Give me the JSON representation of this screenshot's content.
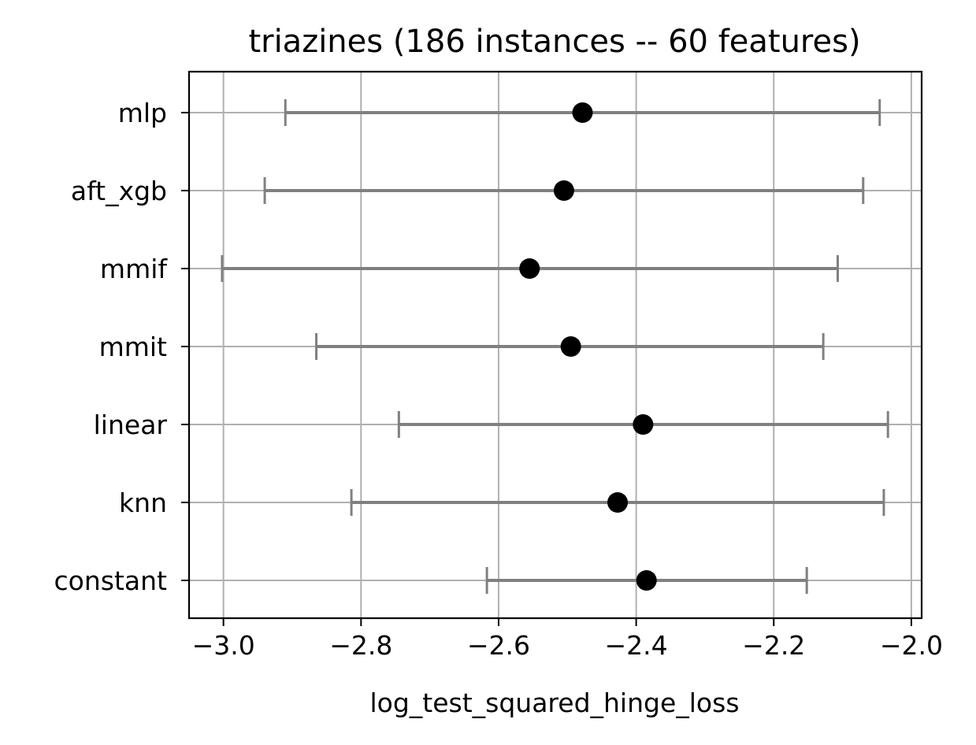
{
  "chart_data": {
    "type": "scatter",
    "title": "triazines (186 instances -- 60 features)",
    "xlabel": "log_test_squared_hinge_loss",
    "ylabel": "",
    "xlim": [
      -3.05,
      -1.985
    ],
    "xticks": [
      -3.0,
      -2.8,
      -2.6,
      -2.4,
      -2.2,
      -2.0
    ],
    "xtick_labels": [
      "−3.0",
      "−2.8",
      "−2.6",
      "−2.4",
      "−2.2",
      "−2.0"
    ],
    "categories": [
      "mlp",
      "aft_xgb",
      "mmif",
      "mmit",
      "linear",
      "knn",
      "constant"
    ],
    "points": [
      {
        "label": "mlp",
        "mean": -2.478,
        "lo": -2.91,
        "hi": -2.046
      },
      {
        "label": "aft_xgb",
        "mean": -2.505,
        "lo": -2.94,
        "hi": -2.07
      },
      {
        "label": "mmif",
        "mean": -2.555,
        "lo": -3.002,
        "hi": -2.107
      },
      {
        "label": "mmit",
        "mean": -2.495,
        "lo": -2.865,
        "hi": -2.128
      },
      {
        "label": "linear",
        "mean": -2.39,
        "lo": -2.745,
        "hi": -2.034
      },
      {
        "label": "knn",
        "mean": -2.427,
        "lo": -2.814,
        "hi": -2.04
      },
      {
        "label": "constant",
        "mean": -2.385,
        "lo": -2.617,
        "hi": -2.152
      }
    ],
    "grid": true,
    "colors": {
      "point": "#000000",
      "errorbar": "#808080",
      "grid": "#b0b0b0",
      "frame": "#000000"
    }
  }
}
